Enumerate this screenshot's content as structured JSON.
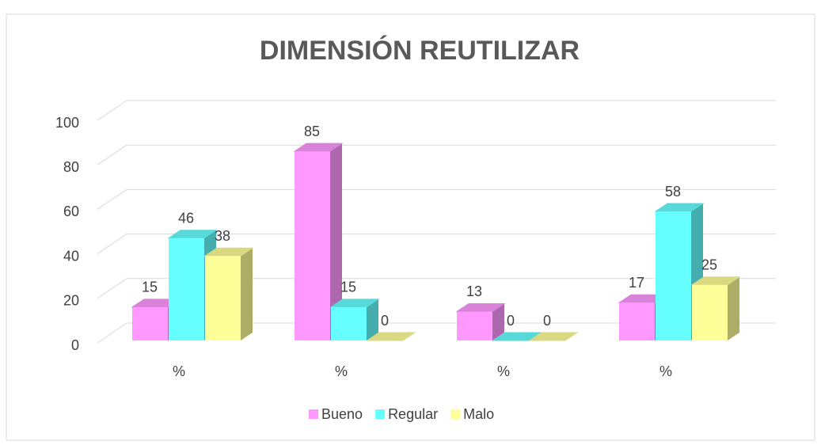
{
  "chart_data": {
    "type": "bar3d",
    "title": "DIMENSIÓN REUTILIZAR",
    "categories": [
      "%",
      "%",
      "%",
      "%"
    ],
    "series": [
      {
        "name": "Bueno",
        "color": "#ff99ff",
        "values": [
          15,
          85,
          13,
          17
        ]
      },
      {
        "name": "Regular",
        "color": "#66ffff",
        "values": [
          46,
          15,
          0,
          58
        ]
      },
      {
        "name": "Malo",
        "color": "#ffff99",
        "values": [
          38,
          0,
          0,
          25
        ]
      }
    ],
    "ylim": [
      0,
      100
    ],
    "yticks": [
      0,
      20,
      40,
      60,
      80,
      100
    ],
    "grid": true,
    "legend": "bottom"
  }
}
